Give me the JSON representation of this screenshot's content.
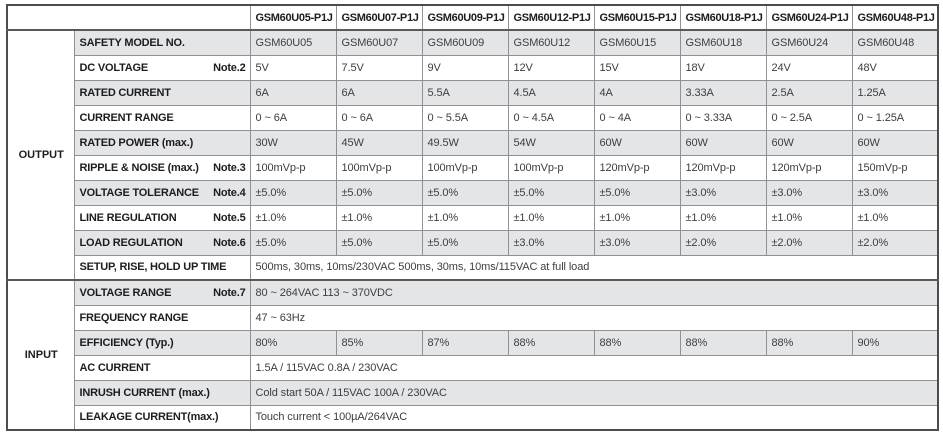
{
  "colors": {
    "row_shade_gray": "#e4e5e6",
    "row_shade_white": "#ffffff",
    "border_outer": "#4d4d4f",
    "border_inner": "#8f9194",
    "label_text": "#1d1d1f",
    "value_text": "#3e3e40"
  },
  "table": {
    "corner": "",
    "models": [
      "GSM60U05-P1J",
      "GSM60U07-P1J",
      "GSM60U09-P1J",
      "GSM60U12-P1J",
      "GSM60U15-P1J",
      "GSM60U18-P1J",
      "GSM60U24-P1J",
      "GSM60U48-P1J"
    ],
    "sections": [
      {
        "name": "OUTPUT",
        "rows": [
          {
            "label": "SAFETY MODEL NO.",
            "note": "",
            "cells": [
              "GSM60U05",
              "GSM60U07",
              "GSM60U09",
              "GSM60U12",
              "GSM60U15",
              "GSM60U18",
              "GSM60U24",
              "GSM60U48"
            ]
          },
          {
            "label": "DC VOLTAGE",
            "note": "Note.2",
            "cells": [
              "5V",
              "7.5V",
              "9V",
              "12V",
              "15V",
              "18V",
              "24V",
              "48V"
            ]
          },
          {
            "label": "RATED CURRENT",
            "note": "",
            "cells": [
              "6A",
              "6A",
              "5.5A",
              "4.5A",
              "4A",
              "3.33A",
              "2.5A",
              "1.25A"
            ]
          },
          {
            "label": "CURRENT RANGE",
            "note": "",
            "cells": [
              "0 ~ 6A",
              "0 ~ 6A",
              "0 ~ 5.5A",
              "0 ~ 4.5A",
              "0 ~ 4A",
              "0 ~ 3.33A",
              "0 ~ 2.5A",
              "0 ~ 1.25A"
            ]
          },
          {
            "label": "RATED POWER (max.)",
            "note": "",
            "cells": [
              "30W",
              "45W",
              "49.5W",
              "54W",
              "60W",
              "60W",
              "60W",
              "60W"
            ]
          },
          {
            "label": "RIPPLE & NOISE (max.)",
            "note": "Note.3",
            "cells": [
              "100mVp-p",
              "100mVp-p",
              "100mVp-p",
              "100mVp-p",
              "120mVp-p",
              "120mVp-p",
              "120mVp-p",
              "150mVp-p"
            ]
          },
          {
            "label": "VOLTAGE TOLERANCE",
            "note": "Note.4",
            "cells": [
              "±5.0%",
              "±5.0%",
              "±5.0%",
              "±5.0%",
              "±5.0%",
              "±3.0%",
              "±3.0%",
              "±3.0%"
            ]
          },
          {
            "label": "LINE REGULATION",
            "note": "Note.5",
            "cells": [
              "±1.0%",
              "±1.0%",
              "±1.0%",
              "±1.0%",
              "±1.0%",
              "±1.0%",
              "±1.0%",
              "±1.0%"
            ]
          },
          {
            "label": "LOAD REGULATION",
            "note": "Note.6",
            "cells": [
              "±5.0%",
              "±5.0%",
              "±5.0%",
              "±3.0%",
              "±3.0%",
              "±2.0%",
              "±2.0%",
              "±2.0%"
            ]
          },
          {
            "label": "SETUP, RISE, HOLD UP TIME",
            "note": "",
            "span": "500ms, 30ms, 10ms/230VAC        500ms, 30ms, 10ms/115VAC  at full load"
          }
        ]
      },
      {
        "name": "INPUT",
        "rows": [
          {
            "label": "VOLTAGE RANGE",
            "note": "Note.7",
            "span": "80 ~ 264VAC        113 ~ 370VDC"
          },
          {
            "label": "FREQUENCY RANGE",
            "note": "",
            "span": "47 ~ 63Hz"
          },
          {
            "label": "EFFICIENCY (Typ.)",
            "note": "",
            "cells": [
              "80%",
              "85%",
              "87%",
              "88%",
              "88%",
              "88%",
              "88%",
              "90%"
            ]
          },
          {
            "label": "AC CURRENT",
            "note": "",
            "span": "1.5A / 115VAC        0.8A / 230VAC"
          },
          {
            "label": "INRUSH CURRENT (max.)",
            "note": "",
            "span": "Cold start   50A / 115VAC        100A / 230VAC"
          },
          {
            "label": "LEAKAGE CURRENT(max.)",
            "note": "",
            "span": "Touch current < 100µA/264VAC"
          }
        ]
      }
    ]
  }
}
